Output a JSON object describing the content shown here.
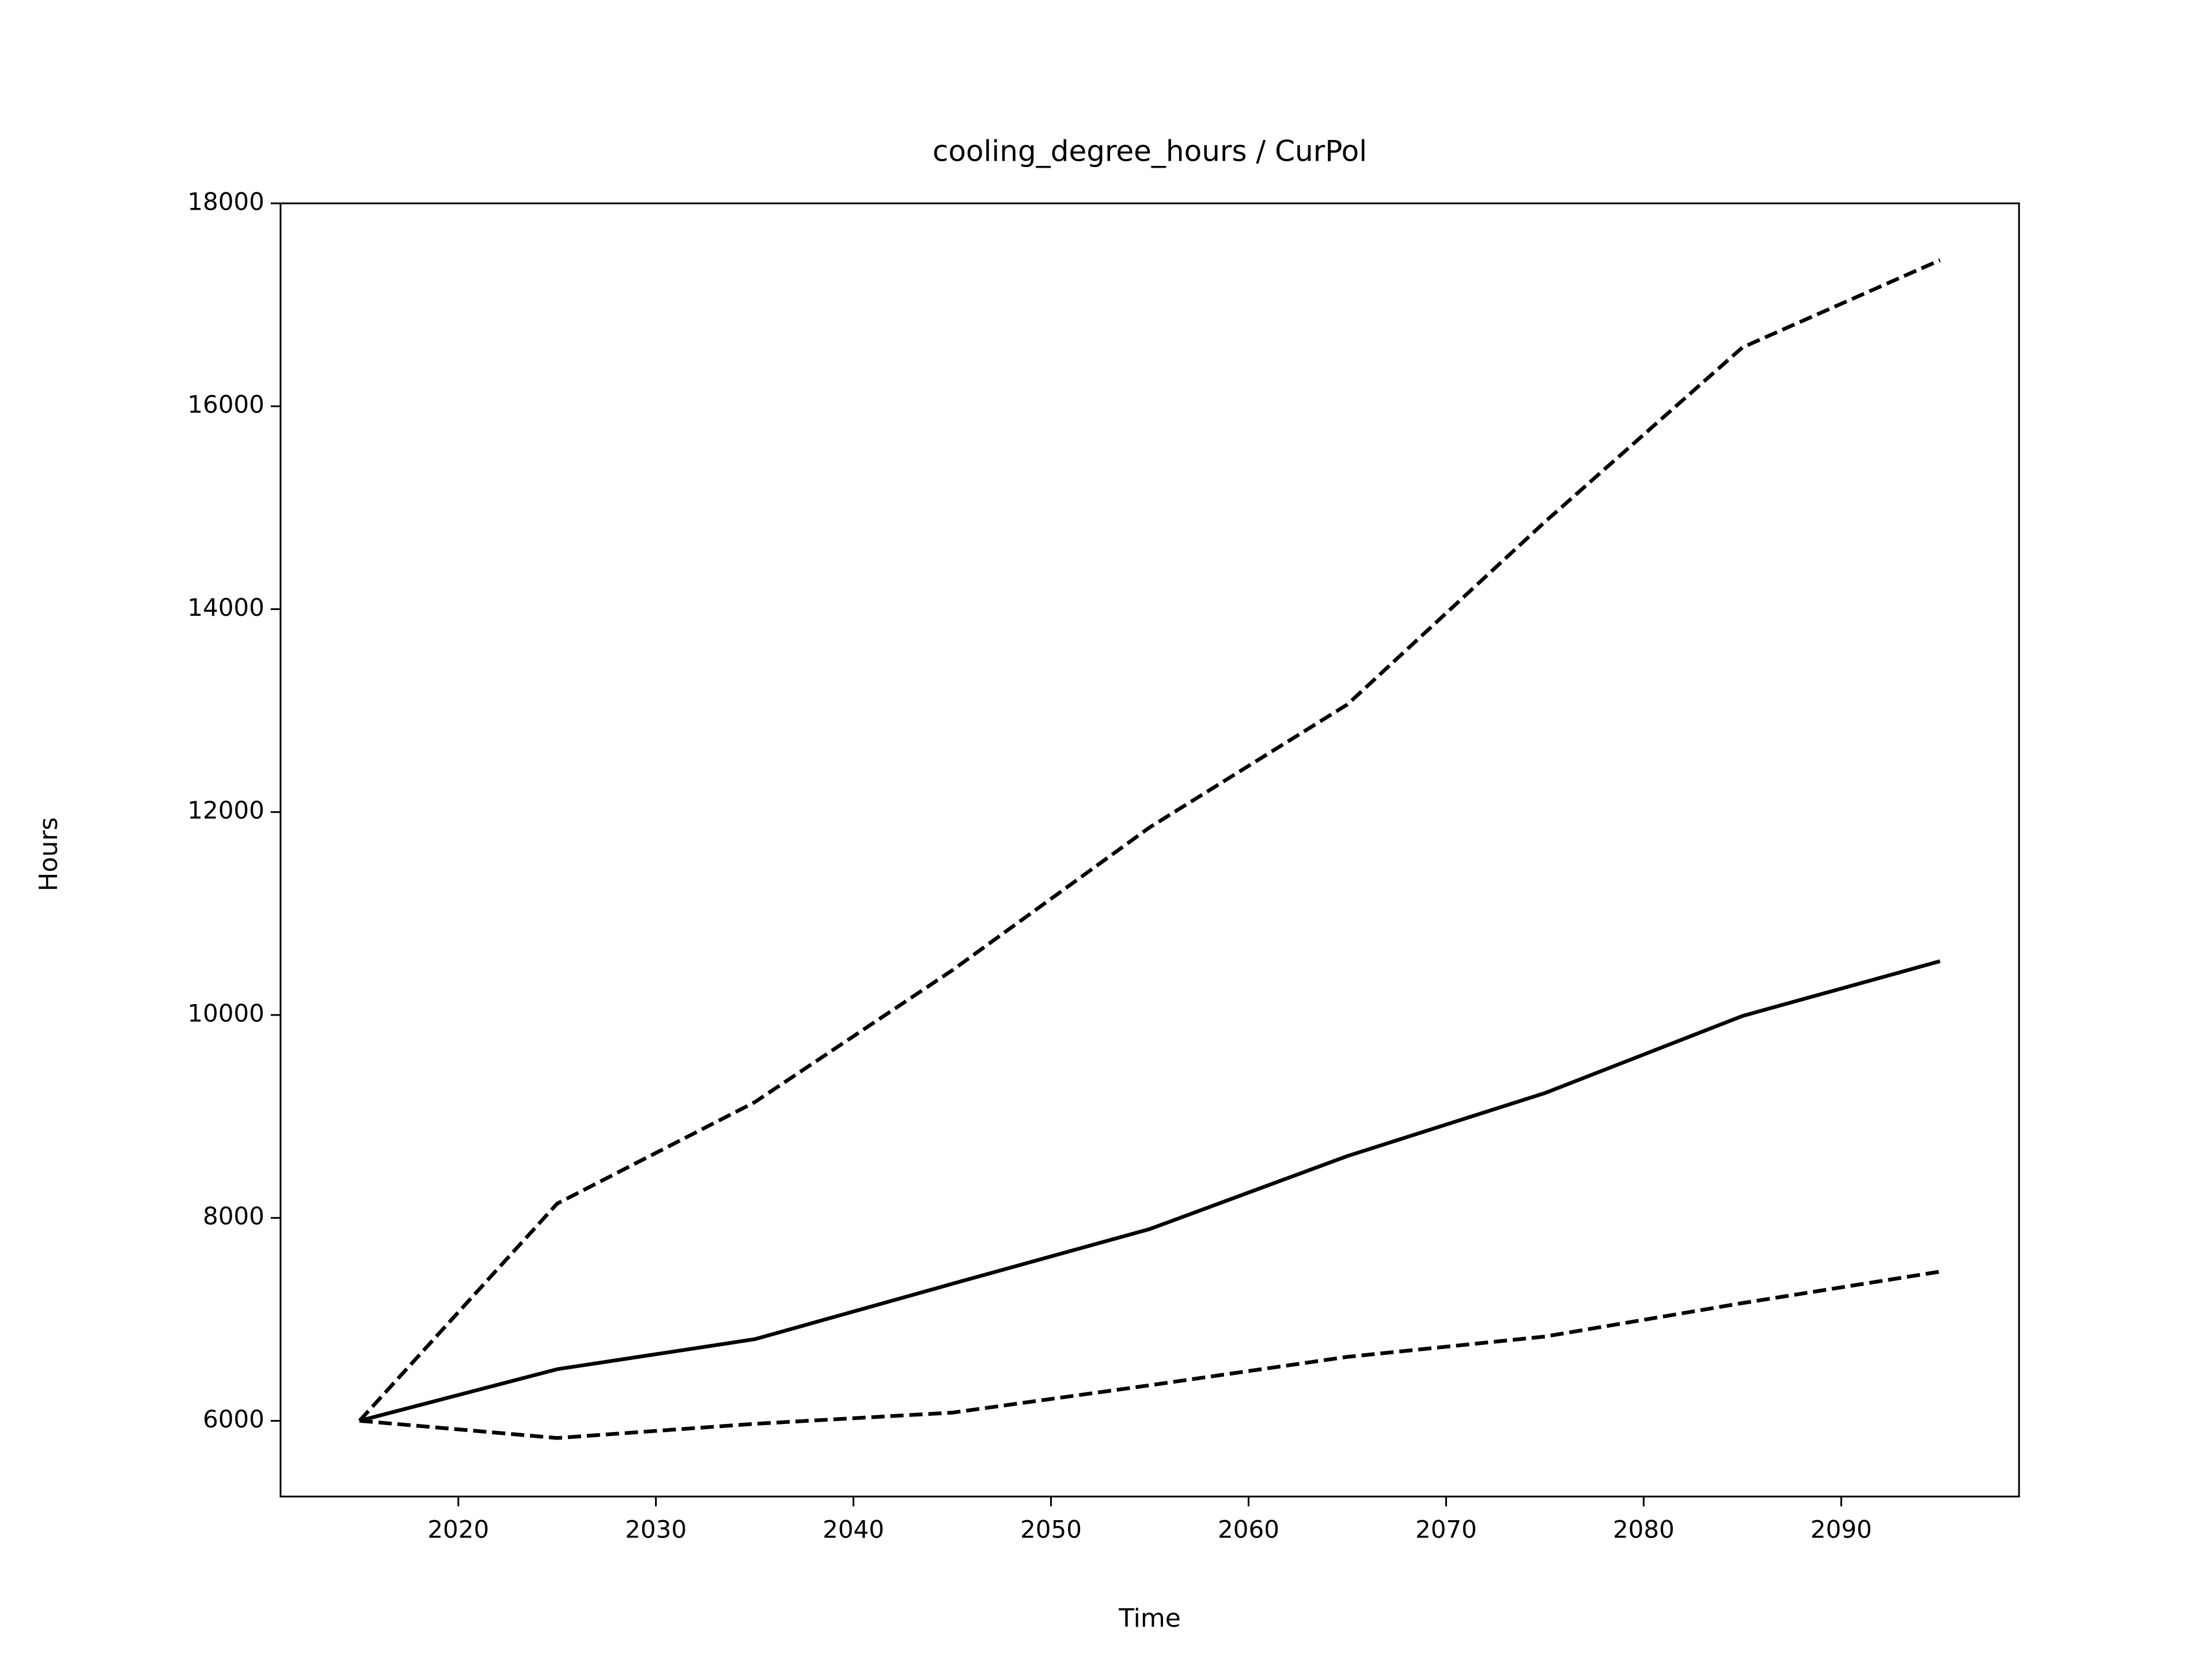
{
  "chart_data": {
    "type": "line",
    "title": "cooling_degree_hours / CurPol",
    "x_label": "Time",
    "y_label": "Hours",
    "x": [
      2015,
      2025,
      2035,
      2045,
      2055,
      2065,
      2075,
      2085,
      2095
    ],
    "series": [
      {
        "color": "#000000",
        "dash": "solid",
        "values": [
          6000,
          6508,
          6804,
          7350,
          7890,
          8609,
          9230,
          9990,
          10530
        ]
      },
      {
        "color": "#000000",
        "dash": "dashed",
        "values": [
          6000,
          8140,
          9140,
          10440,
          11850,
          13060,
          14860,
          16580,
          17440
        ]
      },
      {
        "color": "#000000",
        "dash": "dashed",
        "values": [
          6000,
          5830,
          5970,
          6080,
          6350,
          6630,
          6830,
          7160,
          7470
        ]
      }
    ],
    "xlim": [
      2011,
      2099
    ],
    "ylim": [
      5253,
      18000
    ],
    "xticks": [
      2020,
      2030,
      2040,
      2050,
      2060,
      2070,
      2080,
      2090
    ],
    "yticks": [
      6000,
      8000,
      10000,
      12000,
      14000,
      16000,
      18000
    ],
    "grid": false
  }
}
